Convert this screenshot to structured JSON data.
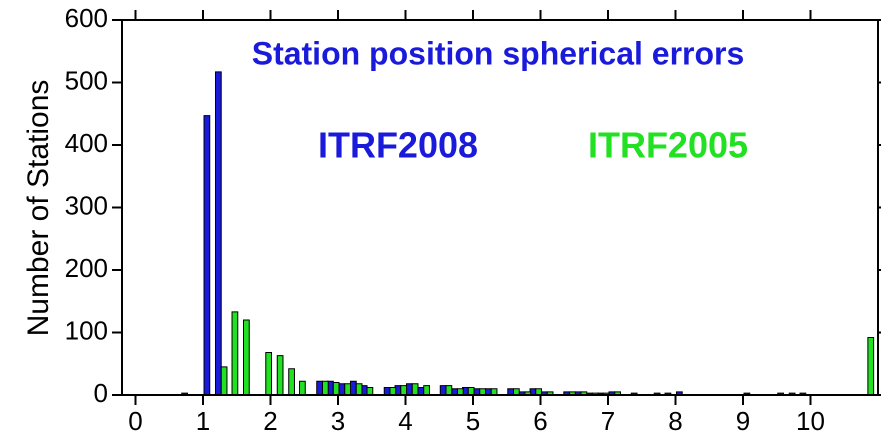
{
  "chart_data": {
    "type": "bar",
    "title": "Station position spherical errors",
    "title_color": "#1a1adb",
    "ylabel": "Number of Stations",
    "x": [
      0.77,
      1.1,
      1.27,
      1.43,
      1.6,
      1.93,
      2.1,
      2.27,
      2.43,
      2.77,
      2.93,
      3.1,
      3.27,
      3.43,
      3.77,
      3.93,
      4.1,
      4.27,
      4.6,
      4.77,
      4.93,
      5.1,
      5.27,
      5.6,
      5.77,
      5.93,
      6.1,
      6.43,
      6.6,
      6.77,
      6.93,
      7.1,
      7.43,
      7.77,
      7.93,
      8.1,
      9.1,
      9.6,
      9.77,
      9.93,
      10.85
    ],
    "series": [
      {
        "name": "ITRF2008",
        "color": "#1a1adb",
        "values": [
          3,
          447,
          517,
          null,
          null,
          null,
          null,
          null,
          null,
          22,
          22,
          18,
          22,
          15,
          12,
          15,
          18,
          12,
          15,
          10,
          12,
          10,
          10,
          10,
          5,
          10,
          5,
          5,
          5,
          3,
          3,
          5,
          3,
          3,
          3,
          5,
          3,
          3,
          3,
          3,
          null
        ]
      },
      {
        "name": "ITRF2005",
        "color": "#22e022",
        "values": [
          null,
          null,
          45,
          133,
          120,
          68,
          63,
          42,
          22,
          22,
          20,
          18,
          18,
          12,
          12,
          15,
          18,
          15,
          15,
          10,
          12,
          10,
          10,
          10,
          5,
          10,
          5,
          5,
          5,
          3,
          3,
          5,
          null,
          null,
          null,
          null,
          null,
          null,
          null,
          null,
          92
        ]
      }
    ],
    "xlim": [
      -0.2,
      11
    ],
    "xticks": [
      0,
      1,
      2,
      3,
      4,
      5,
      6,
      7,
      8,
      9,
      10
    ],
    "ylim": [
      0,
      600
    ],
    "yticks": [
      0,
      100,
      200,
      300,
      400,
      500,
      600
    ]
  }
}
